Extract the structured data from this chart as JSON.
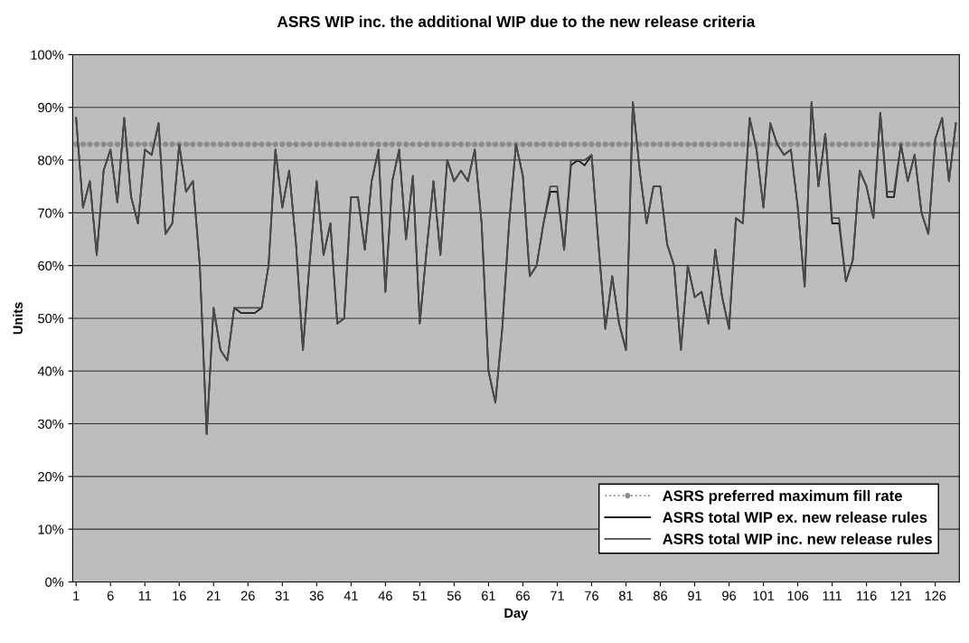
{
  "chart_data": {
    "type": "line",
    "title": "ASRS WIP inc. the additional WIP due to the new release criteria",
    "xlabel": "Day",
    "ylabel": "Units",
    "x": [
      1,
      2,
      3,
      4,
      5,
      6,
      7,
      8,
      9,
      10,
      11,
      12,
      13,
      14,
      15,
      16,
      17,
      18,
      19,
      20,
      21,
      22,
      23,
      24,
      25,
      26,
      27,
      28,
      29,
      30,
      31,
      32,
      33,
      34,
      35,
      36,
      37,
      38,
      39,
      40,
      41,
      42,
      43,
      44,
      45,
      46,
      47,
      48,
      49,
      50,
      51,
      52,
      53,
      54,
      55,
      56,
      57,
      58,
      59,
      60,
      61,
      62,
      63,
      64,
      65,
      66,
      67,
      68,
      69,
      70,
      71,
      72,
      73,
      74,
      75,
      76,
      77,
      78,
      79,
      80,
      81,
      82,
      83,
      84,
      85,
      86,
      87,
      88,
      89,
      90,
      91,
      92,
      93,
      94,
      95,
      96,
      97,
      98,
      99,
      100,
      101,
      102,
      103,
      104,
      105,
      106,
      107,
      108,
      109,
      110,
      111,
      112,
      113,
      114,
      115,
      116,
      117,
      118,
      119,
      120,
      121,
      122,
      123,
      124,
      125,
      126,
      127,
      128,
      129
    ],
    "series": [
      {
        "name": "ASRS preferred maximum fill rate",
        "color": "#8c8c8c",
        "marker": "circle",
        "line_style": "dotted",
        "values": [
          83,
          83,
          83,
          83,
          83,
          83,
          83,
          83,
          83,
          83,
          83,
          83,
          83,
          83,
          83,
          83,
          83,
          83,
          83,
          83,
          83,
          83,
          83,
          83,
          83,
          83,
          83,
          83,
          83,
          83,
          83,
          83,
          83,
          83,
          83,
          83,
          83,
          83,
          83,
          83,
          83,
          83,
          83,
          83,
          83,
          83,
          83,
          83,
          83,
          83,
          83,
          83,
          83,
          83,
          83,
          83,
          83,
          83,
          83,
          83,
          83,
          83,
          83,
          83,
          83,
          83,
          83,
          83,
          83,
          83,
          83,
          83,
          83,
          83,
          83,
          83,
          83,
          83,
          83,
          83,
          83,
          83,
          83,
          83,
          83,
          83,
          83,
          83,
          83,
          83,
          83,
          83,
          83,
          83,
          83,
          83,
          83,
          83,
          83,
          83,
          83,
          83,
          83,
          83,
          83,
          83,
          83,
          83,
          83,
          83,
          83,
          83,
          83,
          83,
          83,
          83,
          83,
          83,
          83,
          83,
          83,
          83,
          83,
          83,
          83,
          83,
          83,
          83,
          83
        ]
      },
      {
        "name": "ASRS total WIP ex. new release rules",
        "color": "#1a1a1a",
        "values": [
          88,
          71,
          76,
          62,
          78,
          82,
          72,
          88,
          73,
          68,
          82,
          81,
          87,
          66,
          68,
          83,
          74,
          76,
          60,
          28,
          52,
          44,
          42,
          52,
          51,
          51,
          51,
          52,
          60,
          82,
          71,
          78,
          64,
          44,
          61,
          76,
          62,
          68,
          49,
          50,
          73,
          73,
          63,
          76,
          82,
          55,
          76,
          82,
          65,
          77,
          49,
          63,
          76,
          62,
          80,
          76,
          78,
          76,
          82,
          68,
          40,
          34,
          48,
          68,
          83,
          77,
          58,
          60,
          68,
          74,
          74,
          63,
          79,
          80,
          79,
          81,
          64,
          48,
          58,
          49,
          44,
          91,
          78,
          68,
          75,
          75,
          64,
          60,
          44,
          60,
          54,
          55,
          49,
          63,
          54,
          48,
          69,
          68,
          88,
          82,
          71,
          87,
          83,
          81,
          82,
          71,
          56,
          91,
          75,
          85,
          68,
          68,
          57,
          61,
          78,
          75,
          69,
          89,
          73,
          73,
          83,
          76,
          81,
          70,
          66,
          84,
          88,
          76,
          87
        ]
      },
      {
        "name": "ASRS total WIP inc. new release rules",
        "color": "#4a4a4a",
        "values": [
          88,
          71,
          76,
          62,
          78,
          82,
          72,
          88,
          73,
          68,
          82,
          81,
          87,
          66,
          68,
          83,
          74,
          76,
          60,
          28,
          52,
          44,
          42,
          52,
          52,
          52,
          52,
          52,
          60,
          82,
          71,
          78,
          64,
          44,
          61,
          76,
          62,
          68,
          49,
          50,
          73,
          73,
          63,
          76,
          82,
          55,
          76,
          82,
          65,
          77,
          49,
          63,
          76,
          62,
          80,
          76,
          78,
          76,
          82,
          68,
          40,
          34,
          48,
          68,
          83,
          77,
          58,
          60,
          68,
          75,
          75,
          63,
          80,
          80,
          80,
          81,
          64,
          48,
          58,
          49,
          44,
          91,
          78,
          68,
          75,
          75,
          64,
          60,
          44,
          60,
          54,
          55,
          49,
          63,
          54,
          48,
          69,
          68,
          88,
          82,
          71,
          87,
          83,
          81,
          82,
          71,
          56,
          91,
          75,
          85,
          69,
          69,
          57,
          61,
          78,
          75,
          69,
          89,
          74,
          74,
          83,
          76,
          81,
          70,
          66,
          84,
          88,
          76,
          87
        ]
      }
    ],
    "xlim": [
      0.5,
      129.5
    ],
    "xticks": [
      1,
      6,
      11,
      16,
      21,
      26,
      31,
      36,
      41,
      46,
      51,
      56,
      61,
      66,
      71,
      76,
      81,
      86,
      91,
      96,
      101,
      106,
      111,
      116,
      121,
      126
    ],
    "ylim": [
      0,
      100
    ],
    "yticks": [
      {
        "value": 0,
        "label": "0%"
      },
      {
        "value": 10,
        "label": "10%"
      },
      {
        "value": 20,
        "label": "20%"
      },
      {
        "value": 30,
        "label": "30%"
      },
      {
        "value": 40,
        "label": "40%"
      },
      {
        "value": 50,
        "label": "50%"
      },
      {
        "value": 60,
        "label": "60%"
      },
      {
        "value": 70,
        "label": "70%"
      },
      {
        "value": 80,
        "label": "80%"
      },
      {
        "value": 90,
        "label": "90%"
      },
      {
        "value": 100,
        "label": "100%"
      }
    ],
    "grid": "y",
    "legend": "bottom right"
  }
}
